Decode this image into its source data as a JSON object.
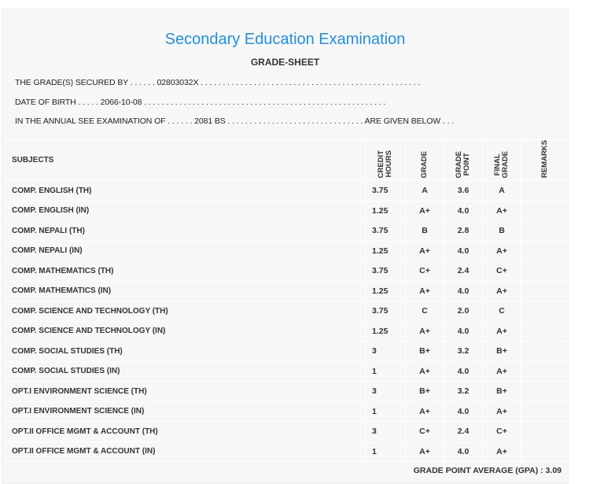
{
  "title": "Secondary Education Examination",
  "subtitle": "GRADE-SHEET",
  "info": {
    "secured_by": "THE GRADE(S) SECURED BY . . . . . . 02803032X . . . . . . . . . . . . . . . . . . . . . . . . . . . . . . . . . . . . . . . . . . . . . . . . . .",
    "dob": "DATE OF BIRTH . . . . . 2066-10-08 . . . . . . . . . . . . . . . . . . . . . . . . . . . . . . . . . . . . . . . . . . . . . . . . . . . . . . .",
    "exam": "IN THE ANNUAL SEE EXAMINATION OF . . . . . . 2081 BS . . . . . . . . . . . . . . . . . . . . . . . . . . . . . . . ARE GIVEN BELOW . . ."
  },
  "headers": {
    "subjects": "SUBJECTS",
    "credit": "CREDIT\nHOURS",
    "grade": "GRADE",
    "point": "GRADE\nPOINT",
    "final": "FINAL\nGRADE",
    "remarks": "REMARKS"
  },
  "rows": [
    {
      "subject": "COMP. ENGLISH (TH)",
      "credit": "3.75",
      "grade": "A",
      "point": "3.6",
      "final": "A"
    },
    {
      "subject": "COMP. ENGLISH (IN)",
      "credit": "1.25",
      "grade": "A+",
      "point": "4.0",
      "final": "A+"
    },
    {
      "subject": "COMP. NEPALI (TH)",
      "credit": "3.75",
      "grade": "B",
      "point": "2.8",
      "final": "B"
    },
    {
      "subject": "COMP. NEPALI (IN)",
      "credit": "1.25",
      "grade": "A+",
      "point": "4.0",
      "final": "A+"
    },
    {
      "subject": "COMP. MATHEMATICS (TH)",
      "credit": "3.75",
      "grade": "C+",
      "point": "2.4",
      "final": "C+"
    },
    {
      "subject": "COMP. MATHEMATICS (IN)",
      "credit": "1.25",
      "grade": "A+",
      "point": "4.0",
      "final": "A+"
    },
    {
      "subject": "COMP. SCIENCE AND TECHNOLOGY (TH)",
      "credit": "3.75",
      "grade": "C",
      "point": "2.0",
      "final": "C"
    },
    {
      "subject": "COMP. SCIENCE AND TECHNOLOGY (IN)",
      "credit": "1.25",
      "grade": "A+",
      "point": "4.0",
      "final": "A+"
    },
    {
      "subject": "COMP. SOCIAL STUDIES (TH)",
      "credit": "3",
      "grade": "B+",
      "point": "3.2",
      "final": "B+"
    },
    {
      "subject": "COMP. SOCIAL STUDIES (IN)",
      "credit": "1",
      "grade": "A+",
      "point": "4.0",
      "final": "A+"
    },
    {
      "subject": "OPT.I ENVIRONMENT SCIENCE (TH)",
      "credit": "3",
      "grade": "B+",
      "point": "3.2",
      "final": "B+"
    },
    {
      "subject": "OPT.I ENVIRONMENT SCIENCE (IN)",
      "credit": "1",
      "grade": "A+",
      "point": "4.0",
      "final": "A+"
    },
    {
      "subject": "OPT.II OFFICE MGMT & ACCOUNT (TH)",
      "credit": "3",
      "grade": "C+",
      "point": "2.4",
      "final": "C+"
    },
    {
      "subject": "OPT.II OFFICE MGMT & ACCOUNT (IN)",
      "credit": "1",
      "grade": "A+",
      "point": "4.0",
      "final": "A+"
    }
  ],
  "gpa": "GRADE POINT AVERAGE (GPA) : 3.09"
}
